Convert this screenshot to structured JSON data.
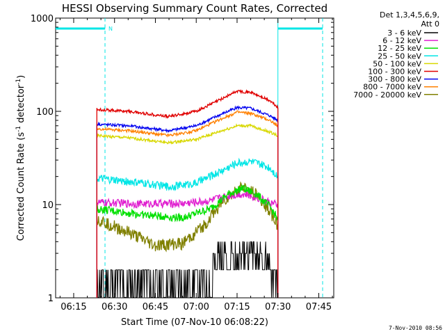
{
  "chart_data": {
    "type": "line",
    "title": "HESSI Observing Summary Count Rates, Corrected",
    "xlabel": "Start Time (07-Nov-10 06:08:22)",
    "ylabel_parts": [
      "Corrected Count Rate (s",
      "-1",
      " detector",
      "-1",
      ")"
    ],
    "x_ticks": [
      "06:15",
      "06:30",
      "06:45",
      "07:00",
      "07:15",
      "07:30",
      "07:45"
    ],
    "x_range_minutes": [
      "06:08:22",
      "07:50:30"
    ],
    "y_scale": "log",
    "y_ticks": [
      "1",
      "10",
      "100",
      "1000"
    ],
    "ylim": [
      1,
      1000
    ],
    "legend_header": [
      "Det 1,3,4,5,6,9,",
      "Att 0"
    ],
    "footer": "7-Nov-2010 08:56",
    "attenuator_markers": [
      {
        "label": "N",
        "x": "06:26:30"
      }
    ],
    "data_gap_start": "06:23:30",
    "data_gap_end": "07:30:00",
    "series": [
      {
        "name": "3 - 6 keV",
        "color": "#000000",
        "values": {
          "06:23:30": 1.6,
          "06:40:00": 1.5,
          "07:00:00": 1.6,
          "07:10:00": 2.6,
          "07:17:00": 3.3,
          "07:22:00": 3.0,
          "07:27:00": 1.8,
          "07:30:00": 1.4
        }
      },
      {
        "name": "6 - 12 keV",
        "color": "#e020d0",
        "values": {
          "06:23:30": 10.5,
          "06:40:00": 10.2,
          "06:55:00": 10.3,
          "07:05:00": 11.0,
          "07:12:00": 12.5,
          "07:17:00": 13.0,
          "07:22:00": 12.0,
          "07:27:00": 10.5,
          "07:30:00": 9.8
        }
      },
      {
        "name": "12 - 25 keV",
        "color": "#00e000",
        "values": {
          "06:23:30": 9.0,
          "06:40:00": 7.8,
          "06:55:00": 7.2,
          "07:05:00": 9.0,
          "07:12:00": 13.0,
          "07:17:00": 15.0,
          "07:22:00": 13.0,
          "07:27:00": 9.5,
          "07:30:00": 7.0
        }
      },
      {
        "name": "25 - 50 keV",
        "color": "#00e6e6",
        "values": {
          "06:23:30": 19.0,
          "06:40:00": 17.0,
          "06:50:00": 15.5,
          "07:00:00": 17.0,
          "07:08:00": 22.0,
          "07:15:00": 28.0,
          "07:20:00": 29.0,
          "07:27:00": 25.0,
          "07:30:00": 20.0
        }
      },
      {
        "name": "50 - 100 keV",
        "color": "#d8d800",
        "values": {
          "06:23:30": 55.0,
          "06:35:00": 52.0,
          "06:50:00": 46.0,
          "07:00:00": 50.0,
          "07:08:00": 60.0,
          "07:15:00": 70.0,
          "07:20:00": 70.0,
          "07:27:00": 60.0,
          "07:30:00": 55.0
        }
      },
      {
        "name": "100 - 300 keV",
        "color": "#e00000",
        "values": {
          "06:23:30": 105.0,
          "06:35:00": 100.0,
          "06:50:00": 88.0,
          "07:00:00": 100.0,
          "07:08:00": 130.0,
          "07:15:00": 165.0,
          "07:20:00": 160.0,
          "07:27:00": 130.0,
          "07:30:00": 110.0
        }
      },
      {
        "name": "300 - 800 keV",
        "color": "#0000f0",
        "values": {
          "06:23:30": 73.0,
          "06:35:00": 70.0,
          "06:50:00": 62.0,
          "07:00:00": 70.0,
          "07:08:00": 90.0,
          "07:15:00": 110.0,
          "07:20:00": 108.0,
          "07:27:00": 90.0,
          "07:30:00": 80.0
        }
      },
      {
        "name": "800 - 7000 keV",
        "color": "#ff8000",
        "values": {
          "06:23:30": 65.0,
          "06:35:00": 62.0,
          "06:50:00": 55.0,
          "07:00:00": 62.0,
          "07:08:00": 80.0,
          "07:15:00": 98.0,
          "07:20:00": 95.0,
          "07:27:00": 80.0,
          "07:30:00": 70.0
        }
      },
      {
        "name": "7000 - 20000 keV",
        "color": "#808000",
        "values": {
          "06:23:30": 7.0,
          "06:35:00": 5.0,
          "06:45:00": 3.6,
          "06:55:00": 3.8,
          "07:03:00": 6.0,
          "07:10:00": 11.0,
          "07:17:00": 15.5,
          "07:22:00": 13.0,
          "07:27:00": 8.5,
          "07:30:00": 6.0
        }
      }
    ]
  }
}
